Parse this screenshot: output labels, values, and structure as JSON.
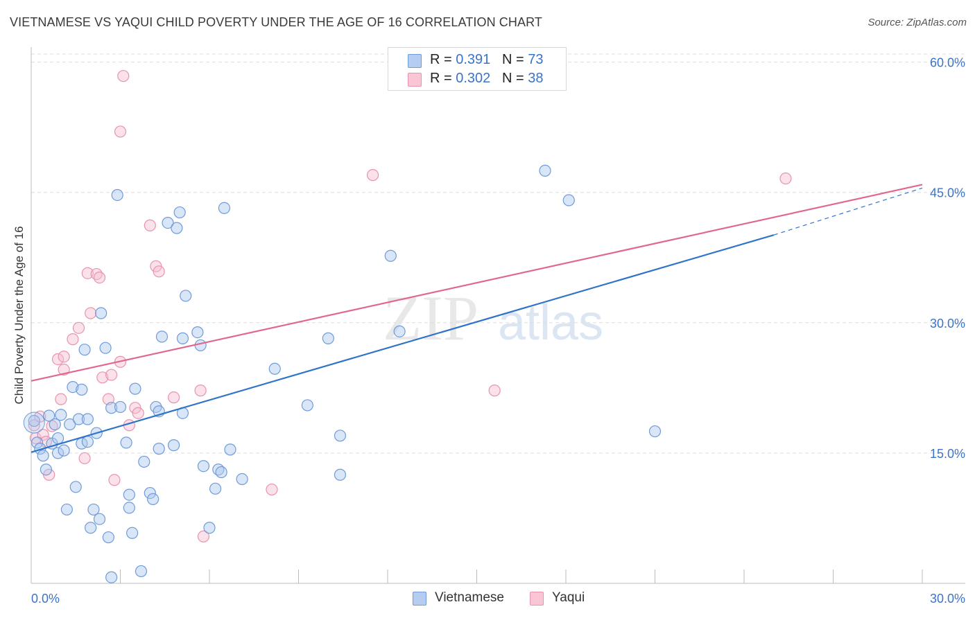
{
  "title": "VIETNAMESE VS YAQUI CHILD POVERTY UNDER THE AGE OF 16 CORRELATION CHART",
  "source": "Source: ZipAtlas.com",
  "watermark": {
    "zip": "ZIP",
    "atlas": "atlas"
  },
  "legend": {
    "rows": [
      {
        "r_label": "R = ",
        "r_value": "0.391",
        "n_label": "N = ",
        "n_value": "73"
      },
      {
        "r_label": "R = ",
        "r_value": "0.302",
        "n_label": "N = ",
        "n_value": "38"
      }
    ]
  },
  "bottom_legend": [
    "Vietnamese",
    "Yaqui"
  ],
  "colors": {
    "vietnamese_fill": "#aac8f0",
    "vietnamese_stroke": "#6f9bd8",
    "vietnamese_line": "#2f74c8",
    "yaqui_fill": "#f7bfd0",
    "yaqui_stroke": "#e893ae",
    "yaqui_line": "#e06890",
    "tick_label": "#3b73c8",
    "grid": "#dddddd"
  },
  "chart_data": {
    "type": "scatter",
    "title": "VIETNAMESE VS YAQUI CHILD POVERTY UNDER THE AGE OF 16 CORRELATION CHART",
    "xlabel": "",
    "ylabel": "Child Poverty Under the Age of 16",
    "xlim": [
      0,
      30
    ],
    "ylim": [
      0,
      63
    ],
    "x_tick_labels": [
      "0.0%",
      "30.0%"
    ],
    "y_tick_labels": [
      "15.0%",
      "30.0%",
      "45.0%",
      "60.0%"
    ],
    "y_ticks": [
      15,
      30,
      45,
      60
    ],
    "grid": true,
    "legend_position": "top-center",
    "series": [
      {
        "name": "Vietnamese",
        "r": 0.391,
        "n": 73,
        "trend": {
          "x": [
            0,
            25.0
          ],
          "y": [
            15.1,
            40.1
          ],
          "dashed_extension_to": [
            30.0,
            45.5
          ]
        },
        "points": [
          [
            0.1,
            18.7
          ],
          [
            0.2,
            16.2
          ],
          [
            0.3,
            15.5
          ],
          [
            0.4,
            14.7
          ],
          [
            0.5,
            13.1
          ],
          [
            0.6,
            19.3
          ],
          [
            0.7,
            16.1
          ],
          [
            0.8,
            18.3
          ],
          [
            0.9,
            16.7
          ],
          [
            0.9,
            15.0
          ],
          [
            1.0,
            19.4
          ],
          [
            1.1,
            15.3
          ],
          [
            1.2,
            8.5
          ],
          [
            1.3,
            18.3
          ],
          [
            1.4,
            22.6
          ],
          [
            1.5,
            11.1
          ],
          [
            1.6,
            18.9
          ],
          [
            1.7,
            16.1
          ],
          [
            1.7,
            22.3
          ],
          [
            1.8,
            26.9
          ],
          [
            1.9,
            16.3
          ],
          [
            1.9,
            18.9
          ],
          [
            2.0,
            6.4
          ],
          [
            2.1,
            8.5
          ],
          [
            2.2,
            17.3
          ],
          [
            2.3,
            7.4
          ],
          [
            2.35,
            31.1
          ],
          [
            2.5,
            27.1
          ],
          [
            2.6,
            5.3
          ],
          [
            2.7,
            20.2
          ],
          [
            2.7,
            0.7
          ],
          [
            2.9,
            44.7
          ],
          [
            3.0,
            20.3
          ],
          [
            3.2,
            16.2
          ],
          [
            3.3,
            10.2
          ],
          [
            3.3,
            8.7
          ],
          [
            3.4,
            5.8
          ],
          [
            3.5,
            22.4
          ],
          [
            3.7,
            1.4
          ],
          [
            3.8,
            14.0
          ],
          [
            4.0,
            10.4
          ],
          [
            4.1,
            9.7
          ],
          [
            4.2,
            20.3
          ],
          [
            4.3,
            19.8
          ],
          [
            4.3,
            15.5
          ],
          [
            4.4,
            28.4
          ],
          [
            4.6,
            41.5
          ],
          [
            4.8,
            15.9
          ],
          [
            4.9,
            40.9
          ],
          [
            5.0,
            42.7
          ],
          [
            5.1,
            28.2
          ],
          [
            5.1,
            19.6
          ],
          [
            5.2,
            33.1
          ],
          [
            5.6,
            28.9
          ],
          [
            5.7,
            27.4
          ],
          [
            5.8,
            13.5
          ],
          [
            6.0,
            6.4
          ],
          [
            6.2,
            10.9
          ],
          [
            6.3,
            13.1
          ],
          [
            6.4,
            12.8
          ],
          [
            6.5,
            43.2
          ],
          [
            6.7,
            15.4
          ],
          [
            7.1,
            12.0
          ],
          [
            8.2,
            24.7
          ],
          [
            9.3,
            20.5
          ],
          [
            10.0,
            28.2
          ],
          [
            10.4,
            17.0
          ],
          [
            10.4,
            12.5
          ],
          [
            12.1,
            37.7
          ],
          [
            12.4,
            29.0
          ],
          [
            17.3,
            47.5
          ],
          [
            18.1,
            44.1
          ],
          [
            21.0,
            17.5
          ]
        ]
      },
      {
        "name": "Yaqui",
        "r": 0.302,
        "n": 38,
        "trend": {
          "x": [
            0,
            30.0
          ],
          "y": [
            23.3,
            45.9
          ]
        },
        "points": [
          [
            0.1,
            18.2
          ],
          [
            0.15,
            16.7
          ],
          [
            0.3,
            19.2
          ],
          [
            0.4,
            17.1
          ],
          [
            0.5,
            16.3
          ],
          [
            0.6,
            12.5
          ],
          [
            0.7,
            18.1
          ],
          [
            0.9,
            25.8
          ],
          [
            1.0,
            21.2
          ],
          [
            1.1,
            24.6
          ],
          [
            1.1,
            26.1
          ],
          [
            1.4,
            28.1
          ],
          [
            1.6,
            29.4
          ],
          [
            1.8,
            14.4
          ],
          [
            1.9,
            35.7
          ],
          [
            2.0,
            31.1
          ],
          [
            2.2,
            35.6
          ],
          [
            2.3,
            35.2
          ],
          [
            2.4,
            23.7
          ],
          [
            2.6,
            21.2
          ],
          [
            2.7,
            24.0
          ],
          [
            2.8,
            11.9
          ],
          [
            3.0,
            25.5
          ],
          [
            3.0,
            52.0
          ],
          [
            3.1,
            58.4
          ],
          [
            3.3,
            18.2
          ],
          [
            3.5,
            20.2
          ],
          [
            3.6,
            19.6
          ],
          [
            4.0,
            41.2
          ],
          [
            4.2,
            36.5
          ],
          [
            4.3,
            35.9
          ],
          [
            4.8,
            21.4
          ],
          [
            5.7,
            22.2
          ],
          [
            5.8,
            5.4
          ],
          [
            8.1,
            10.8
          ],
          [
            11.5,
            47.0
          ],
          [
            15.6,
            22.2
          ],
          [
            25.4,
            46.6
          ]
        ]
      }
    ]
  }
}
